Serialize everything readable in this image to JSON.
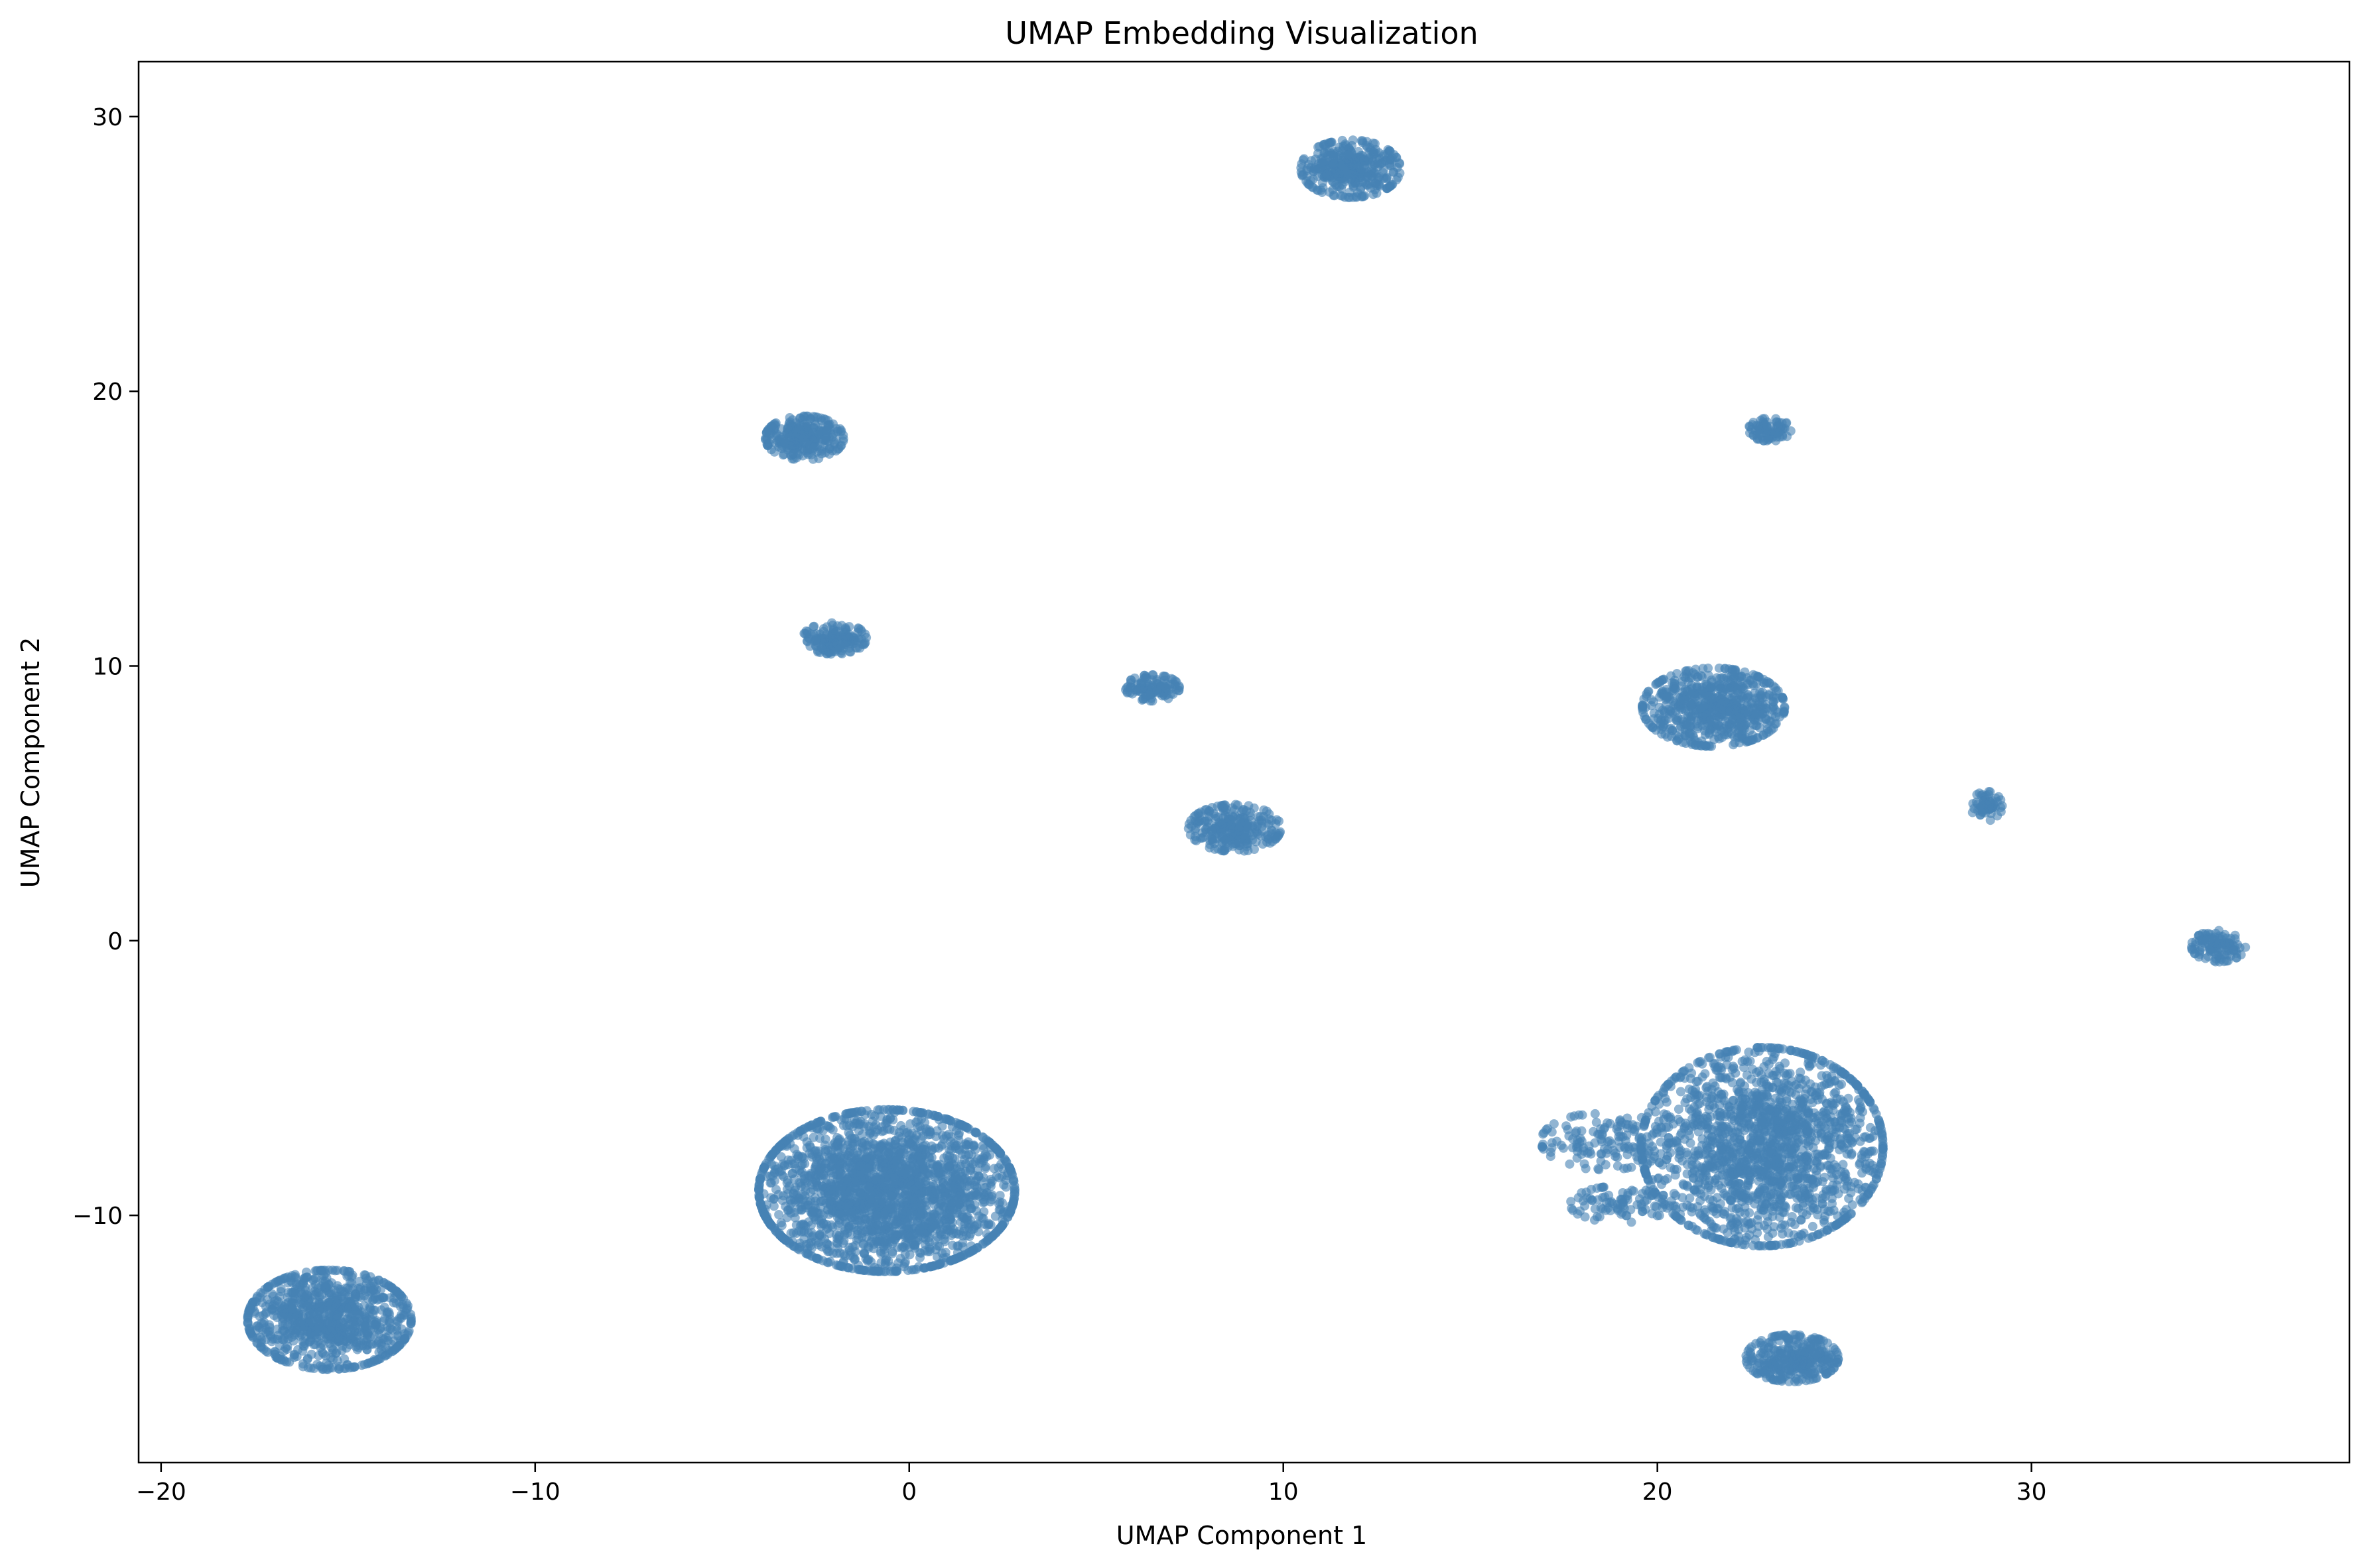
{
  "chart_data": {
    "type": "scatter",
    "title": "UMAP Embedding Visualization",
    "xlabel": "UMAP Component 1",
    "ylabel": "UMAP Component 2",
    "xlim": [
      -20.6,
      38.5
    ],
    "ylim": [
      -19.0,
      32.0
    ],
    "x_ticks": [
      -20,
      -10,
      0,
      10,
      20,
      30
    ],
    "x_tick_labels": [
      "−20",
      "−10",
      "0",
      "10",
      "20",
      "30"
    ],
    "y_ticks": [
      -10,
      0,
      10,
      20,
      30
    ],
    "y_tick_labels": [
      "−10",
      "0",
      "10",
      "20",
      "30"
    ],
    "grid": false,
    "legend": "none",
    "point_color": "#4682b4",
    "point_alpha": 0.6,
    "clusters": [
      {
        "center": [
          -15.5,
          -13.8
        ],
        "spread": [
          1.15,
          0.95
        ],
        "count": 900
      },
      {
        "center": [
          -0.6,
          -9.1
        ],
        "spread": [
          1.8,
          1.55
        ],
        "count": 2200
      },
      {
        "center": [
          -2.8,
          18.3
        ],
        "spread": [
          0.55,
          0.42
        ],
        "count": 260
      },
      {
        "center": [
          -2.0,
          11.0
        ],
        "spread": [
          0.45,
          0.3
        ],
        "count": 160
      },
      {
        "center": [
          6.5,
          9.2
        ],
        "spread": [
          0.38,
          0.25
        ],
        "count": 110
      },
      {
        "center": [
          8.7,
          4.1
        ],
        "spread": [
          0.65,
          0.45
        ],
        "count": 260
      },
      {
        "center": [
          11.8,
          28.1
        ],
        "spread": [
          0.7,
          0.55
        ],
        "count": 380
      },
      {
        "center": [
          21.5,
          8.5
        ],
        "spread": [
          1.0,
          0.75
        ],
        "count": 650
      },
      {
        "center": [
          23.0,
          18.6
        ],
        "spread": [
          0.3,
          0.22
        ],
        "count": 80
      },
      {
        "center": [
          28.8,
          4.9
        ],
        "spread": [
          0.22,
          0.28
        ],
        "count": 60
      },
      {
        "center": [
          35.0,
          -0.2
        ],
        "spread": [
          0.38,
          0.3
        ],
        "count": 110
      },
      {
        "center": [
          22.8,
          -7.5
        ],
        "spread": [
          1.7,
          1.9
        ],
        "count": 1700
      },
      {
        "center": [
          18.6,
          -7.3
        ],
        "spread": [
          0.9,
          0.55
        ],
        "count": 140
      },
      {
        "center": [
          19.0,
          -9.6
        ],
        "spread": [
          0.7,
          0.35
        ],
        "count": 90
      },
      {
        "center": [
          23.6,
          -15.2
        ],
        "spread": [
          0.65,
          0.45
        ],
        "count": 320
      }
    ]
  }
}
